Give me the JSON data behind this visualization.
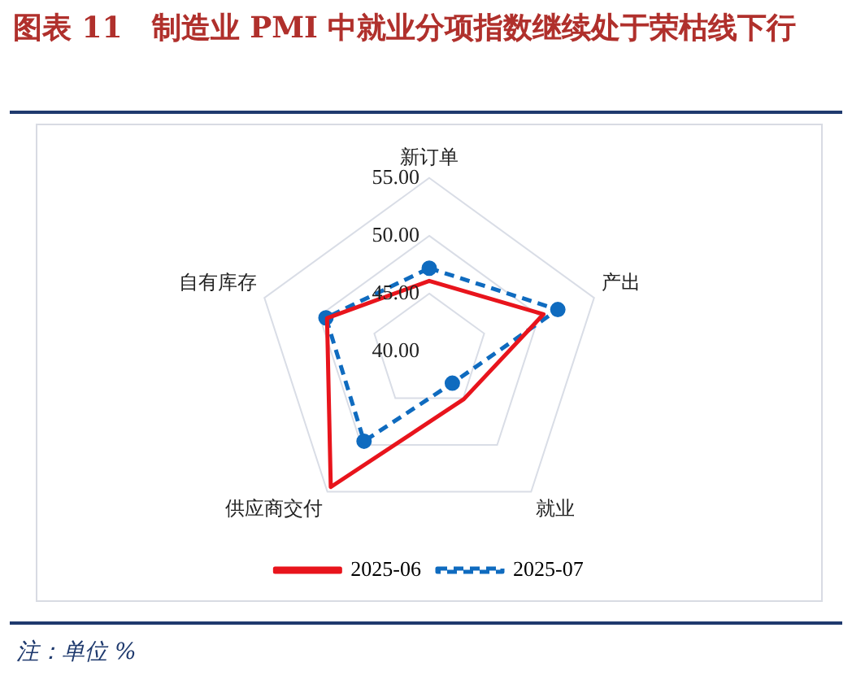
{
  "chart_data": {
    "type": "radar",
    "title": "图表 11　制造业 PMI 中就业分项指数继续处于荣枯线下行",
    "categories": [
      "新订单",
      "产出",
      "就业",
      "供应商交付",
      "自有库存"
    ],
    "series": [
      {
        "name": "2025-06",
        "color": "#e8141c",
        "values": [
          46.1,
          50.4,
          45.1,
          54.5,
          49.3
        ],
        "marker": "none",
        "line_style": "solid"
      },
      {
        "name": "2025-07",
        "color": "#0f6bbf",
        "values": [
          47.2,
          51.7,
          43.4,
          49.6,
          49.4
        ],
        "marker": "circle",
        "line_style": "dashed"
      }
    ],
    "ylim": [
      40,
      55
    ],
    "yticks": [
      {
        "value": 40,
        "label": "40.00"
      },
      {
        "value": 45,
        "label": "45.00"
      },
      {
        "value": 50,
        "label": "50.00"
      },
      {
        "value": 55,
        "label": "55.00"
      }
    ],
    "grid": true,
    "legend": "bottom",
    "annotations": [
      "注：单位 %"
    ]
  }
}
